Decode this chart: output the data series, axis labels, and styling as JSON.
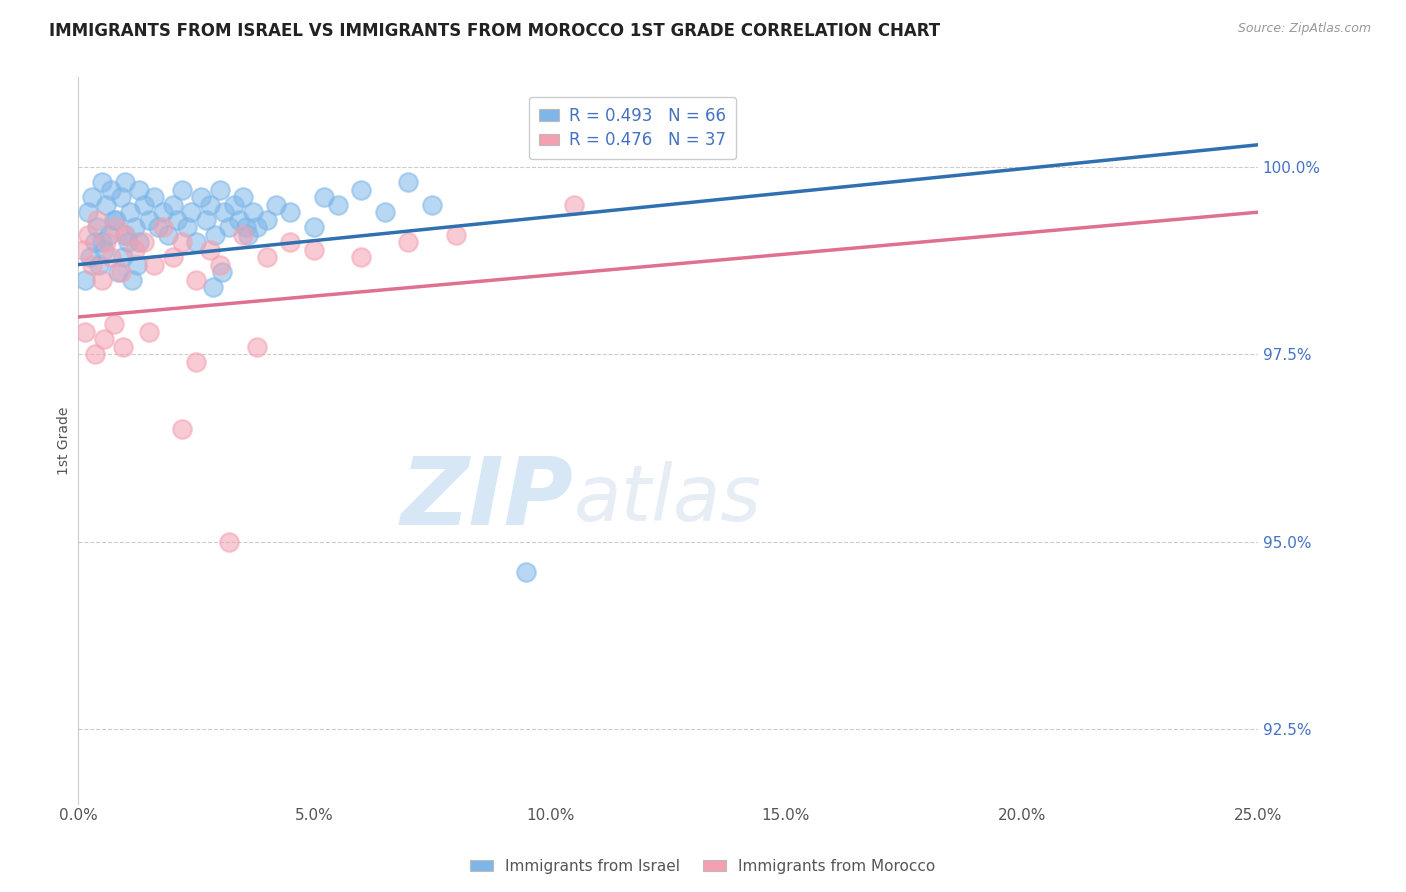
{
  "title": "IMMIGRANTS FROM ISRAEL VS IMMIGRANTS FROM MOROCCO 1ST GRADE CORRELATION CHART",
  "source_text": "Source: ZipAtlas.com",
  "ylabel": "1st Grade",
  "xlim": [
    0.0,
    25.0
  ],
  "ylim": [
    91.5,
    101.2
  ],
  "xticks": [
    0.0,
    5.0,
    10.0,
    15.0,
    20.0,
    25.0
  ],
  "xtick_labels": [
    "0.0%",
    "5.0%",
    "10.0%",
    "15.0%",
    "20.0%",
    "25.0%"
  ],
  "yticks": [
    92.5,
    95.0,
    97.5,
    100.0
  ],
  "ytick_labels": [
    "92.5%",
    "95.0%",
    "97.5%",
    "100.0%"
  ],
  "legend_entries": [
    "Immigrants from Israel",
    "Immigrants from Morocco"
  ],
  "R_israel": 0.493,
  "N_israel": 66,
  "R_morocco": 0.476,
  "N_morocco": 37,
  "israel_color": "#7EB6E8",
  "morocco_color": "#F4A0B0",
  "israel_line_color": "#3070B0",
  "morocco_line_color": "#E07090",
  "background_color": "#ffffff",
  "watermark_zip": "ZIP",
  "watermark_atlas": "atlas",
  "israel_x": [
    0.2,
    0.3,
    0.4,
    0.5,
    0.5,
    0.6,
    0.7,
    0.8,
    0.9,
    1.0,
    1.0,
    1.1,
    1.2,
    1.3,
    1.3,
    1.4,
    1.5,
    1.6,
    1.7,
    1.8,
    1.9,
    2.0,
    2.1,
    2.2,
    2.3,
    2.4,
    2.5,
    2.6,
    2.7,
    2.8,
    2.9,
    3.0,
    3.1,
    3.2,
    3.3,
    3.4,
    3.5,
    3.6,
    3.7,
    3.8,
    4.0,
    4.2,
    4.5,
    5.0,
    5.2,
    5.5,
    6.0,
    6.5,
    7.0,
    7.5,
    0.15,
    0.25,
    0.35,
    0.45,
    0.55,
    0.65,
    0.75,
    0.85,
    0.95,
    1.05,
    1.15,
    1.25,
    2.85,
    3.05,
    3.55,
    9.5
  ],
  "israel_y": [
    99.4,
    99.6,
    99.2,
    99.8,
    99.0,
    99.5,
    99.7,
    99.3,
    99.6,
    99.1,
    99.8,
    99.4,
    99.2,
    99.7,
    99.0,
    99.5,
    99.3,
    99.6,
    99.2,
    99.4,
    99.1,
    99.5,
    99.3,
    99.7,
    99.2,
    99.4,
    99.0,
    99.6,
    99.3,
    99.5,
    99.1,
    99.7,
    99.4,
    99.2,
    99.5,
    99.3,
    99.6,
    99.1,
    99.4,
    99.2,
    99.3,
    99.5,
    99.4,
    99.2,
    99.6,
    99.5,
    99.7,
    99.4,
    99.8,
    99.5,
    98.5,
    98.8,
    99.0,
    98.7,
    98.9,
    99.1,
    99.3,
    98.6,
    98.8,
    99.0,
    98.5,
    98.7,
    98.4,
    98.6,
    99.2,
    94.6
  ],
  "morocco_x": [
    0.1,
    0.2,
    0.3,
    0.4,
    0.5,
    0.6,
    0.7,
    0.8,
    0.9,
    1.0,
    1.2,
    1.4,
    1.6,
    1.8,
    2.0,
    2.2,
    2.5,
    2.8,
    3.0,
    3.5,
    4.0,
    4.5,
    5.0,
    6.0,
    7.0,
    8.0,
    10.5,
    0.15,
    0.35,
    0.55,
    0.75,
    0.95,
    1.5,
    2.5,
    3.8,
    2.2,
    3.2
  ],
  "morocco_y": [
    98.9,
    99.1,
    98.7,
    99.3,
    98.5,
    99.0,
    98.8,
    99.2,
    98.6,
    99.1,
    98.9,
    99.0,
    98.7,
    99.2,
    98.8,
    99.0,
    98.5,
    98.9,
    98.7,
    99.1,
    98.8,
    99.0,
    98.9,
    98.8,
    99.0,
    99.1,
    99.5,
    97.8,
    97.5,
    97.7,
    97.9,
    97.6,
    97.8,
    97.4,
    97.6,
    96.5,
    95.0
  ],
  "trend_israel_x0": 0.0,
  "trend_israel_y0": 98.7,
  "trend_israel_x1": 25.0,
  "trend_israel_y1": 100.3,
  "trend_morocco_x0": 0.0,
  "trend_morocco_y0": 98.0,
  "trend_morocco_x1": 25.0,
  "trend_morocco_y1": 99.4
}
